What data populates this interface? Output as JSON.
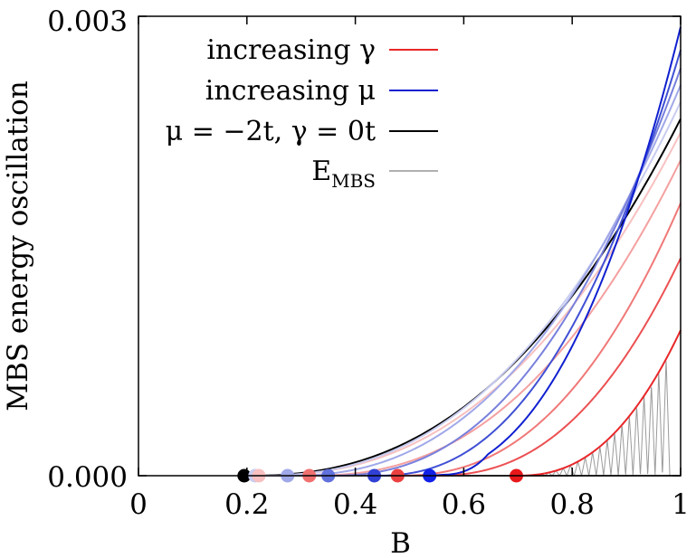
{
  "chart_data": {
    "type": "line",
    "title": "",
    "xlabel": "B",
    "ylabel": "MBS energy oscillation",
    "xlim": [
      0,
      1
    ],
    "ylim": [
      0,
      0.003
    ],
    "x_ticks": [
      "0",
      "0.2",
      "0.4",
      "0.6",
      "0.8",
      "1"
    ],
    "x_tick_values": [
      0,
      0.2,
      0.4,
      0.6,
      0.8,
      1.0
    ],
    "y_ticks": [
      "0.000",
      "0.003"
    ],
    "y_tick_values": [
      0,
      0.003
    ],
    "grid": false,
    "legend_position": "top-right",
    "legend": [
      {
        "label": "increasing γ",
        "color": "#e8272a"
      },
      {
        "label": "increasing μ",
        "color": "#1020d0"
      },
      {
        "label": "μ = −2t, γ = 0t",
        "color": "#000000"
      },
      {
        "label": "E",
        "sub": "MBS",
        "color": "#b0b0b0"
      }
    ],
    "series": [
      {
        "name": "gamma-1",
        "color": "#e8272a",
        "onset": 0.695,
        "end_value": 0.00095
      },
      {
        "name": "gamma-2",
        "color": "#ec5052",
        "onset": 0.54,
        "end_value": 0.00142
      },
      {
        "name": "gamma-3",
        "color": "#f07878",
        "onset": 0.475,
        "end_value": 0.00178
      },
      {
        "name": "gamma-4",
        "color": "#f4a0a0",
        "onset": 0.31,
        "end_value": 0.00206
      },
      {
        "name": "gamma-5",
        "color": "#f8c0c0",
        "onset": 0.215,
        "end_value": 0.00224
      },
      {
        "name": "baseline",
        "color": "#000000",
        "onset": 0.195,
        "end_value": 0.00233
      },
      {
        "name": "mu-1",
        "color": "#c8ccf0",
        "onset": 0.215,
        "end_value": 0.00244
      },
      {
        "name": "mu-2",
        "color": "#a0a8e8",
        "onset": 0.27,
        "end_value": 0.00255
      },
      {
        "name": "mu-3",
        "color": "#7880dc",
        "onset": 0.35,
        "end_value": 0.00266
      },
      {
        "name": "mu-4",
        "color": "#4050d4",
        "onset": 0.435,
        "end_value": 0.00278
      },
      {
        "name": "mu-5",
        "color": "#1020d0",
        "onset": 0.535,
        "end_value": 0.00293,
        "kink_x": 0.565
      }
    ],
    "onset_markers": [
      {
        "x": 0.195,
        "color": "#000000"
      },
      {
        "x": 0.215,
        "color": "#c8ccf0"
      },
      {
        "x": 0.222,
        "color": "#f8c0c0"
      },
      {
        "x": 0.275,
        "color": "#a0a8e8"
      },
      {
        "x": 0.315,
        "color": "#f07070"
      },
      {
        "x": 0.35,
        "color": "#6070dc"
      },
      {
        "x": 0.435,
        "color": "#3040d4"
      },
      {
        "x": 0.478,
        "color": "#ec4040"
      },
      {
        "x": 0.537,
        "color": "#1020e8"
      },
      {
        "x": 0.697,
        "color": "#e8171a"
      }
    ],
    "emb_oscillation": {
      "color": "#9a9a9a",
      "x_start": 0.695,
      "x_end": 0.98,
      "periods": 21,
      "envelope": "gamma-1"
    }
  }
}
